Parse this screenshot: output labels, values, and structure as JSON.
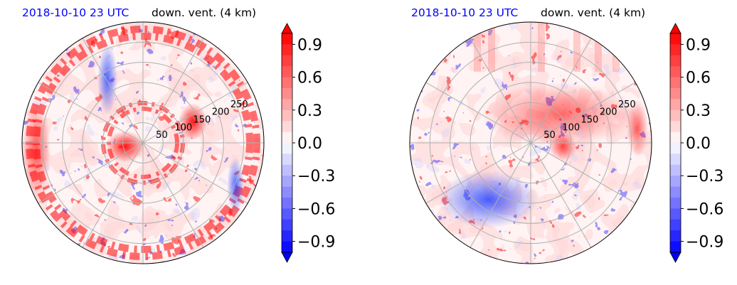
{
  "figure": {
    "panels": [
      {
        "date_label": "2018-10-10 23 UTC",
        "variable_label": "down. vent. (4 km)"
      },
      {
        "date_label": "2018-10-10 23 UTC",
        "variable_label": "down. vent. (4 km)"
      }
    ]
  },
  "colors": {
    "title_date": "#0000ff",
    "negative_max": "#0000ff",
    "positive_max": "#ff0000",
    "neutral": "#ffffff",
    "grid": "#b0b0b0"
  },
  "chart_data": [
    {
      "type": "heatmap",
      "projection": "polar",
      "title": "2018-10-10 23 UTC down. vent. (4 km)",
      "radial_ticks": [
        "50",
        "100",
        "150",
        "200",
        "250"
      ],
      "radial_values": [
        50,
        100,
        150,
        200,
        250
      ],
      "r_max": 300,
      "angular_gridlines_deg": [
        0,
        30,
        60,
        90,
        120,
        150,
        180,
        210,
        240,
        270,
        300,
        330
      ],
      "grid": true,
      "colorbar": {
        "ticks": [
          "0.9",
          "0.6",
          "0.3",
          "0.0",
          "−0.3",
          "−0.6",
          "−0.9"
        ],
        "tick_values": [
          0.9,
          0.6,
          0.3,
          0.0,
          -0.3,
          -0.6,
          -0.9
        ],
        "range": [
          -1.0,
          1.0
        ],
        "levels": 20,
        "extend": "both",
        "colormap": "bwr",
        "placement": "right"
      }
    },
    {
      "type": "heatmap",
      "projection": "polar",
      "title": "2018-10-10 23 UTC down. vent. (4 km)",
      "radial_ticks": [
        "50",
        "100",
        "150",
        "200",
        "250"
      ],
      "radial_values": [
        50,
        100,
        150,
        200,
        250
      ],
      "r_max": 300,
      "angular_gridlines_deg": [
        0,
        30,
        60,
        90,
        120,
        150,
        180,
        210,
        240,
        270,
        300,
        330
      ],
      "grid": true,
      "colorbar": {
        "ticks": [
          "0.9",
          "0.6",
          "0.3",
          "0.0",
          "−0.3",
          "−0.6",
          "−0.9"
        ],
        "tick_values": [
          0.9,
          0.6,
          0.3,
          0.0,
          -0.3,
          -0.6,
          -0.9
        ],
        "range": [
          -1.0,
          1.0
        ],
        "levels": 20,
        "extend": "both",
        "colormap": "bwr",
        "placement": "right"
      }
    }
  ]
}
